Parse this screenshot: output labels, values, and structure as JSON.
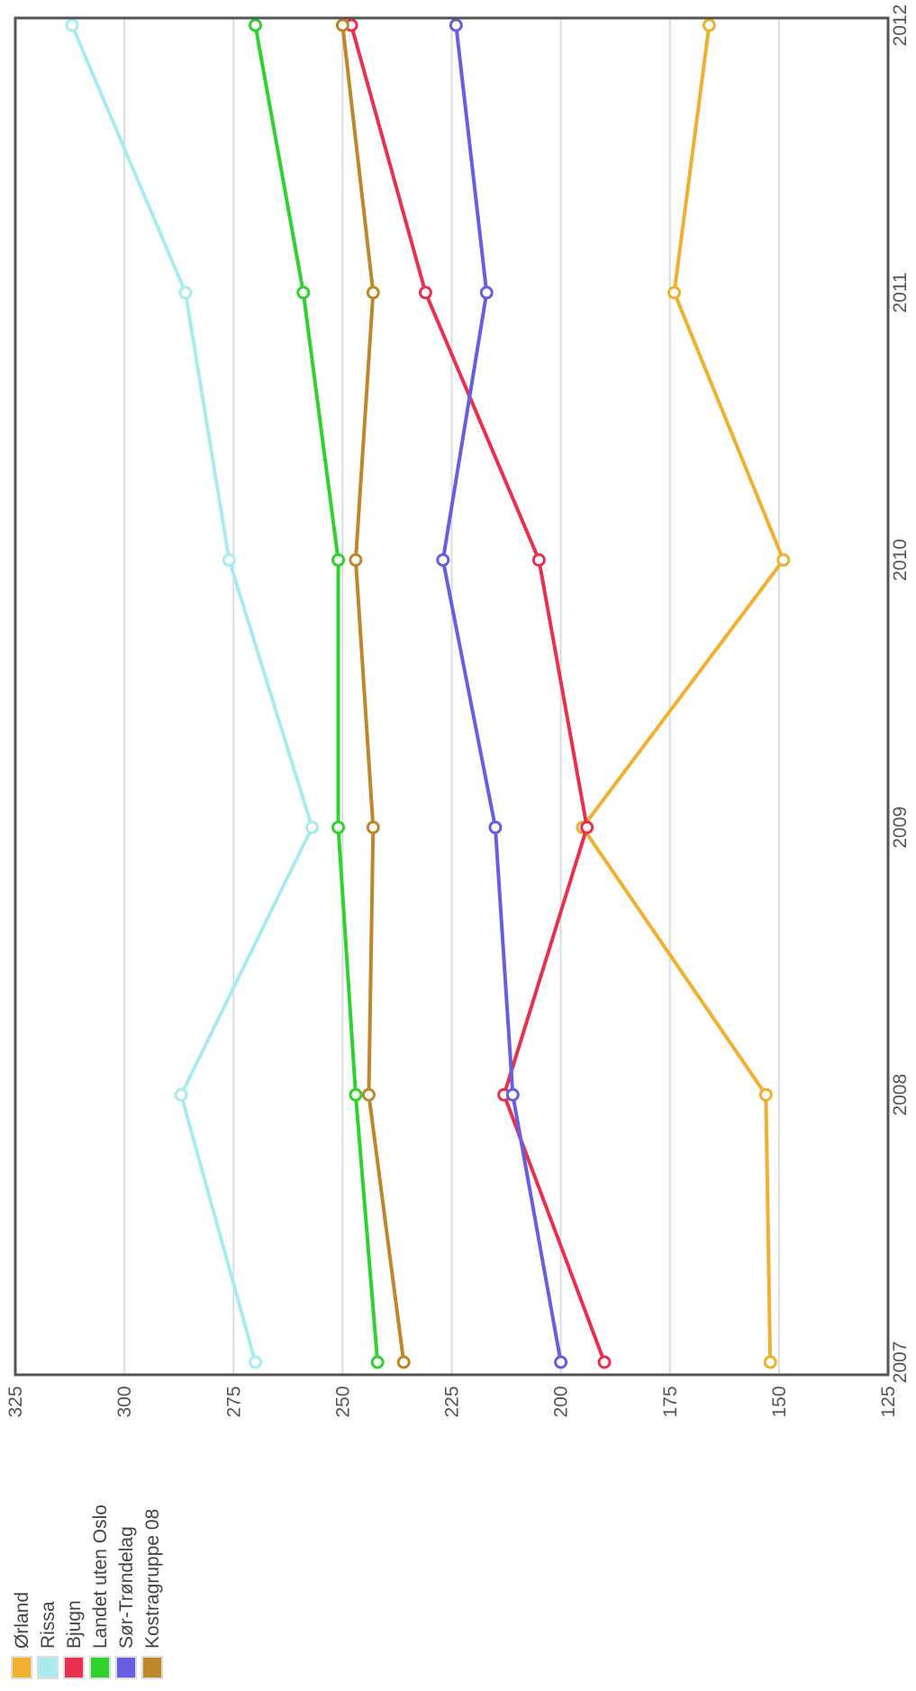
{
  "chart_data": {
    "type": "line",
    "x": [
      "2007",
      "2008",
      "2009",
      "2010",
      "2011",
      "2012"
    ],
    "ylim": [
      125,
      325
    ],
    "y_ticks": [
      "125",
      "150",
      "175",
      "200",
      "225",
      "250",
      "275",
      "300",
      "325"
    ],
    "grid": true,
    "legend_position": "left",
    "series": [
      {
        "name": "Ørland",
        "color": "#f0b030",
        "values": [
          152,
          153,
          195,
          149,
          174,
          166
        ]
      },
      {
        "name": "Rissa",
        "color": "#a8ecf0",
        "values": [
          270,
          287,
          257,
          276,
          286,
          312
        ]
      },
      {
        "name": "Bjugn",
        "color": "#e83050",
        "values": [
          190,
          213,
          194,
          205,
          231,
          248
        ]
      },
      {
        "name": "Landet uten Oslo",
        "color": "#30d230",
        "values": [
          242,
          247,
          251,
          251,
          259,
          270
        ]
      },
      {
        "name": "Sør-Trøndelag",
        "color": "#6a5ee0",
        "values": [
          200,
          211,
          215,
          227,
          217,
          224
        ]
      },
      {
        "name": "Kostragruppe 08",
        "color": "#c0862a",
        "values": [
          236,
          244,
          243,
          247,
          243,
          250
        ]
      }
    ]
  }
}
